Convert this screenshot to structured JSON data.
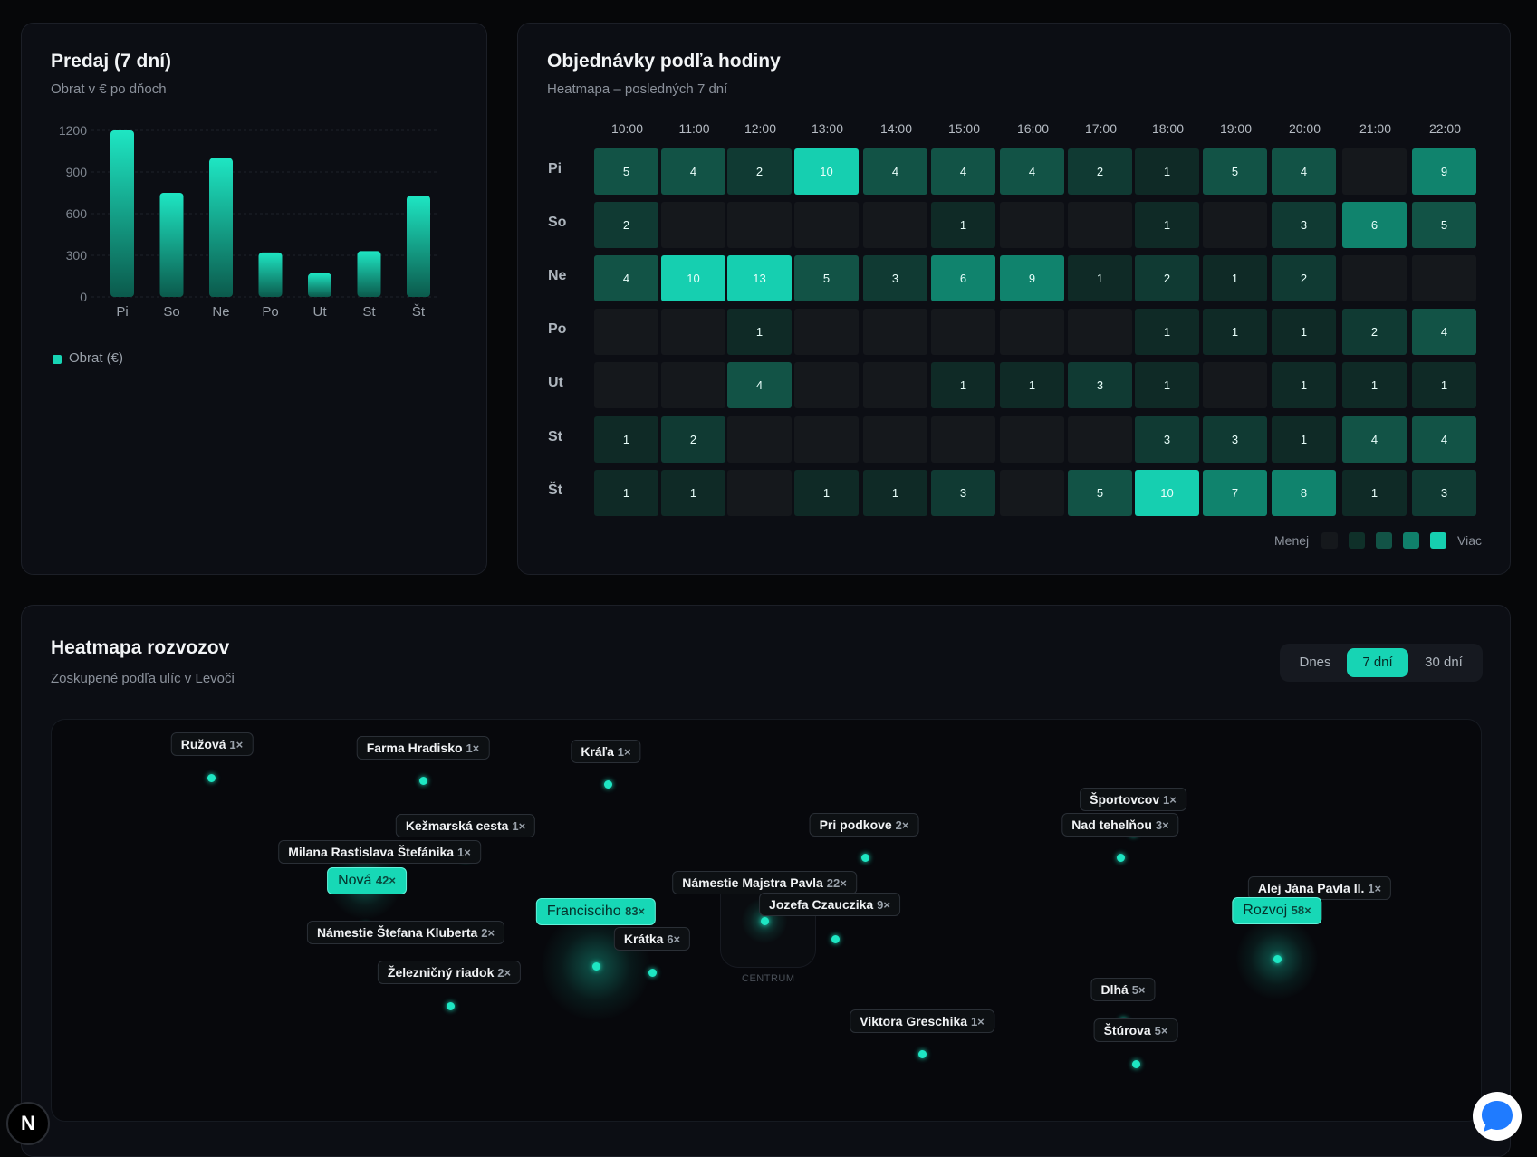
{
  "sales": {
    "title": "Predaj (7 dní)",
    "subtitle": "Obrat v € po dňoch",
    "legend": "Obrat (€)",
    "color": "#17d4b4"
  },
  "chart_data": {
    "type": "bar",
    "title": "Predaj (7 dní)",
    "subtitle": "Obrat v € po dňoch",
    "categories": [
      "Pi",
      "So",
      "Ne",
      "Po",
      "Ut",
      "St",
      "Št"
    ],
    "series": [
      {
        "name": "Obrat (€)",
        "values": [
          1200,
          750,
          1000,
          320,
          170,
          330,
          730
        ]
      }
    ],
    "yticks": [
      0,
      300,
      600,
      900,
      1200
    ],
    "ylim": [
      0,
      1200
    ],
    "grid": true,
    "legend": "bottom-left"
  },
  "orders": {
    "title": "Objednávky podľa hodiny",
    "subtitle": "Heatmapa – posledných 7 dní",
    "hours": [
      "10:00",
      "11:00",
      "12:00",
      "13:00",
      "14:00",
      "15:00",
      "16:00",
      "17:00",
      "18:00",
      "19:00",
      "20:00",
      "21:00",
      "22:00"
    ],
    "days": [
      "Pi",
      "So",
      "Ne",
      "Po",
      "Ut",
      "St",
      "Št"
    ],
    "values": [
      [
        5,
        4,
        2,
        10,
        4,
        4,
        4,
        2,
        1,
        5,
        4,
        null,
        9
      ],
      [
        2,
        null,
        null,
        null,
        null,
        1,
        null,
        null,
        1,
        null,
        3,
        6,
        5
      ],
      [
        4,
        10,
        13,
        5,
        3,
        6,
        9,
        1,
        2,
        1,
        2,
        null,
        null
      ],
      [
        null,
        null,
        1,
        null,
        null,
        null,
        null,
        null,
        1,
        1,
        1,
        2,
        4
      ],
      [
        null,
        null,
        4,
        null,
        null,
        1,
        1,
        3,
        1,
        null,
        1,
        1,
        1
      ],
      [
        1,
        2,
        null,
        null,
        null,
        null,
        null,
        null,
        3,
        3,
        1,
        4,
        4
      ],
      [
        1,
        1,
        null,
        1,
        1,
        3,
        null,
        5,
        10,
        7,
        8,
        1,
        3
      ]
    ],
    "legend_less": "Menej",
    "legend_more": "Viac",
    "scale_colors": [
      "#15181c",
      "#0f3029",
      "#125346",
      "#10806b",
      "#16cfb0"
    ]
  },
  "map": {
    "title": "Heatmapa rozvozov",
    "subtitle": "Zoskupené podľa ulíc v Levoči",
    "tabs": [
      "Dnes",
      "7 dní",
      "30 dní"
    ],
    "active_tab": "7 dní",
    "centrum_label": "CENTRUM",
    "streets": [
      {
        "name": "Ružová",
        "count": "1×",
        "hot": false
      },
      {
        "name": "Farma Hradisko",
        "count": "1×",
        "hot": false
      },
      {
        "name": "Kráľa",
        "count": "1×",
        "hot": false
      },
      {
        "name": "Kežmarská cesta",
        "count": "1×",
        "hot": false
      },
      {
        "name": "Milana Rastislava Štefánika",
        "count": "1×",
        "hot": false
      },
      {
        "name": "Nová",
        "count": "42×",
        "hot": true
      },
      {
        "name": "Námestie Štefana Kluberta",
        "count": "2×",
        "hot": false
      },
      {
        "name": "Železničný riadok",
        "count": "2×",
        "hot": false
      },
      {
        "name": "Francisciho",
        "count": "83×",
        "hot": true
      },
      {
        "name": "Krátka",
        "count": "6×",
        "hot": false
      },
      {
        "name": "Námestie Majstra Pavla",
        "count": "22×",
        "hot": false
      },
      {
        "name": "Jozefa Czauczika",
        "count": "9×",
        "hot": false
      },
      {
        "name": "Pri podkove",
        "count": "2×",
        "hot": false
      },
      {
        "name": "Športovcov",
        "count": "1×",
        "hot": false
      },
      {
        "name": "Nad tehelňou",
        "count": "3×",
        "hot": false
      },
      {
        "name": "Alej Jána Pavla II.",
        "count": "1×",
        "hot": false
      },
      {
        "name": "Rozvoj",
        "count": "58×",
        "hot": true
      },
      {
        "name": "Dlhá",
        "count": "5×",
        "hot": false
      },
      {
        "name": "Štúrova",
        "count": "5×",
        "hot": false
      },
      {
        "name": "Viktora Greschika",
        "count": "1×",
        "hot": false
      }
    ]
  },
  "badges": {
    "next": "N"
  }
}
